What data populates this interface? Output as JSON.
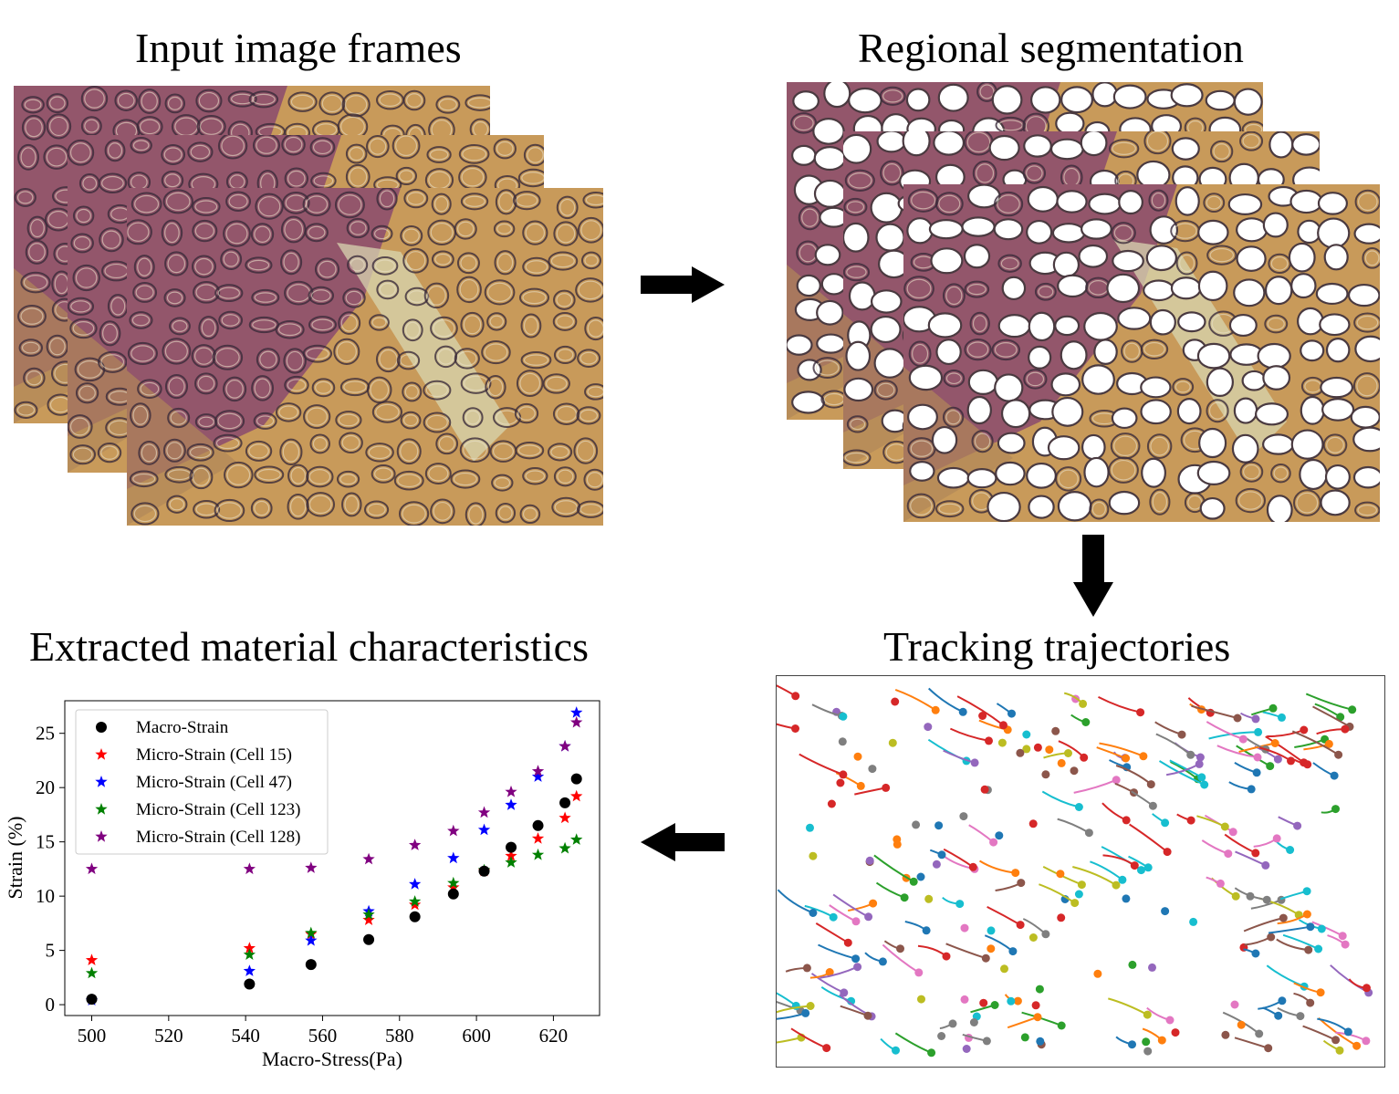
{
  "panels": {
    "input_title": "Input image frames",
    "segmentation_title": "Regional segmentation",
    "tracking_title": "Tracking trajectories",
    "characteristics_title": "Extracted material characteristics"
  },
  "colors": {
    "tissue_purple": "#8a4a6e",
    "tissue_tan": "#c89a5a",
    "tissue_dark": "#3a2a3a",
    "arrow": "#000000"
  },
  "chart_data": {
    "type": "scatter",
    "xlabel": "Macro-Stress(Pa)",
    "ylabel": "Strain (%)",
    "xlim": [
      493,
      632
    ],
    "ylim": [
      -1,
      28
    ],
    "xticks": [
      500,
      520,
      540,
      560,
      580,
      600,
      620
    ],
    "yticks": [
      0,
      5,
      10,
      15,
      20,
      25
    ],
    "grid": false,
    "legend_position": "top-left",
    "series": [
      {
        "name": "Macro-Strain",
        "marker": "circle",
        "color": "#000000",
        "x": [
          500,
          541,
          557,
          572,
          584,
          594,
          602,
          609,
          616,
          623,
          626
        ],
        "y": [
          0.5,
          1.9,
          3.7,
          6.0,
          8.1,
          10.2,
          12.3,
          14.5,
          16.5,
          18.6,
          20.8
        ]
      },
      {
        "name": "Micro-Strain (Cell 15)",
        "marker": "star",
        "color": "#ff0000",
        "x": [
          500,
          541,
          557,
          572,
          584,
          594,
          602,
          609,
          616,
          623,
          626
        ],
        "y": [
          4.1,
          5.2,
          6.5,
          7.8,
          9.2,
          10.8,
          12.3,
          13.7,
          15.3,
          17.2,
          19.2
        ]
      },
      {
        "name": "Micro-Strain (Cell 47)",
        "marker": "star",
        "color": "#0000ff",
        "x": [
          500,
          541,
          557,
          572,
          584,
          594,
          602,
          609,
          616,
          623,
          626
        ],
        "y": [
          0.4,
          3.1,
          5.9,
          8.6,
          11.1,
          13.5,
          16.1,
          18.4,
          21.0,
          23.8,
          26.9
        ]
      },
      {
        "name": "Micro-Strain (Cell 123)",
        "marker": "star",
        "color": "#008000",
        "x": [
          500,
          541,
          557,
          572,
          584,
          594,
          602,
          609,
          616,
          623,
          626
        ],
        "y": [
          2.9,
          4.6,
          6.6,
          8.3,
          9.5,
          11.2,
          12.4,
          13.1,
          13.8,
          14.4,
          15.2
        ]
      },
      {
        "name": "Micro-Strain (Cell 128)",
        "marker": "star",
        "color": "#800080",
        "x": [
          500,
          541,
          557,
          572,
          584,
          594,
          602,
          609,
          616,
          623,
          626
        ],
        "y": [
          12.5,
          12.5,
          12.6,
          13.4,
          14.7,
          16.0,
          17.7,
          19.6,
          21.5,
          23.8,
          26.0
        ]
      }
    ]
  },
  "tracking": {
    "palette": [
      "#1f77b4",
      "#ff7f0e",
      "#2ca02c",
      "#d62728",
      "#9467bd",
      "#8c564b",
      "#e377c2",
      "#7f7f7f",
      "#bcbd22",
      "#17becf"
    ]
  }
}
